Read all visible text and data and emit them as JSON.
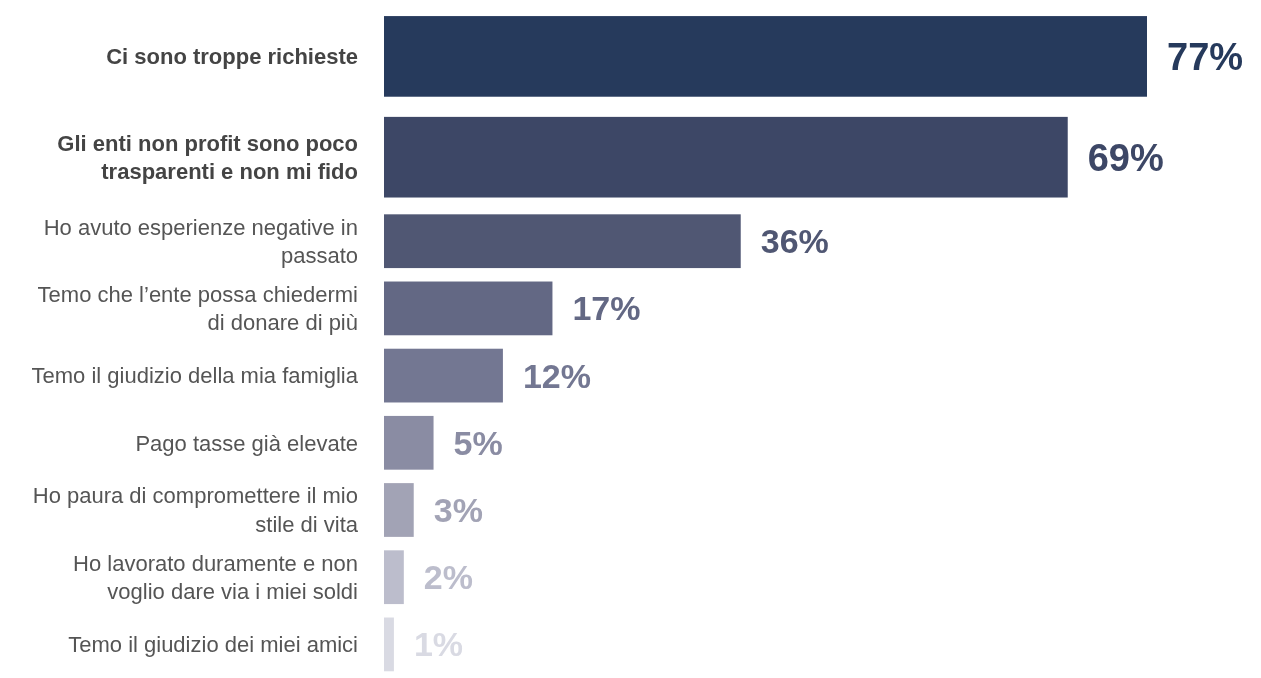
{
  "chart_data": {
    "type": "bar",
    "orientation": "horizontal",
    "categories": [
      "Ci sono troppe richieste",
      "Gli enti non profit sono poco trasparenti e non mi fido",
      "Ho avuto esperienze negative in passato",
      "Temo che l’ente possa chiedermi di donare di più",
      "Temo il giudizio della mia famiglia",
      "Pago tasse già elevate",
      "Ho paura di compromettere il mio stile di vita",
      "Ho lavorato duramente e non voglio dare via i miei soldi",
      "Temo il giudizio dei miei amici"
    ],
    "values": [
      77,
      69,
      36,
      17,
      12,
      5,
      3,
      2,
      1
    ],
    "colors": [
      "#263a5c",
      "#3d4766",
      "#505773",
      "#636884",
      "#737792",
      "#8a8ca3",
      "#a2a3b5",
      "#bcbdcc",
      "#d9dae3"
    ],
    "value_labels": [
      "77%",
      "69%",
      "36%",
      "17%",
      "12%",
      "5%",
      "3%",
      "2%",
      "1%"
    ]
  }
}
